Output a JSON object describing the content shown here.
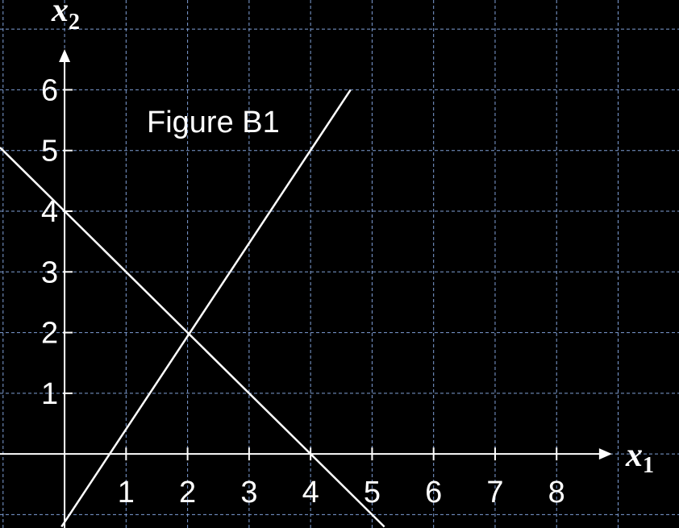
{
  "chart_data": {
    "type": "line",
    "annotation": "Figure B1",
    "x_axis": {
      "label": "x",
      "subscript": "1",
      "ticks": [
        1,
        2,
        3,
        4,
        5,
        6,
        7,
        8
      ],
      "range": [
        -1.05,
        9.99
      ]
    },
    "y_axis": {
      "label": "x",
      "subscript": "2",
      "ticks": [
        1,
        2,
        3,
        4,
        5,
        6
      ],
      "range": [
        -1.22,
        7.48
      ]
    },
    "grid": true,
    "colors": {
      "background": "#000000",
      "lines": "#ffffff",
      "grid": "#7f9fd6"
    },
    "series": [
      {
        "points": [
          [
            -0.05,
            -1.2
          ],
          [
            4.65,
            6.0
          ]
        ]
      },
      {
        "points": [
          [
            -1.05,
            5.05
          ],
          [
            5.2,
            -1.2
          ]
        ]
      }
    ]
  }
}
